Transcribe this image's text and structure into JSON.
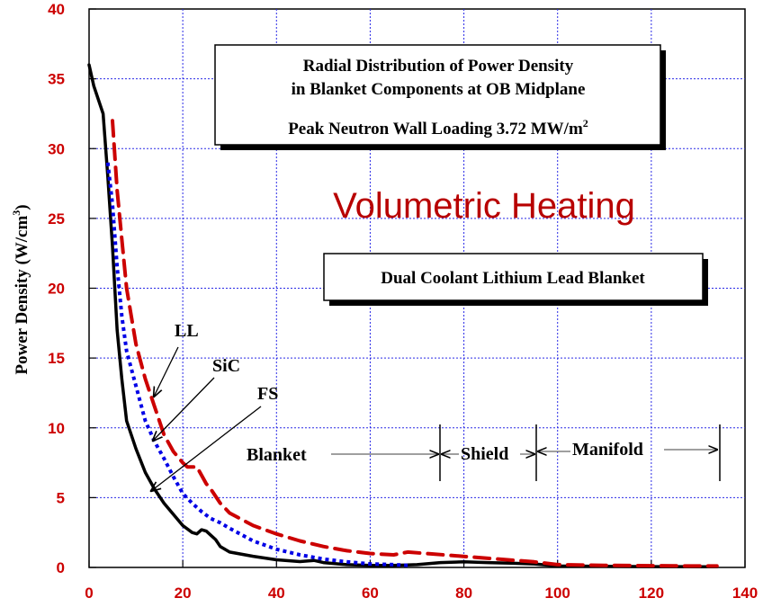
{
  "chart_data": {
    "type": "line",
    "title_line1": "Radial Distribution of Power Density",
    "title_line2": "in Blanket Components at OB Midplane",
    "subtitle_prefix": "Peak Neutron Wall Loading 3.72 MW/m",
    "subtitle_sup": "2",
    "headline": "Volumetric Heating",
    "blanket_label": "Dual Coolant Lithium Lead Blanket",
    "ylabel_prefix": "Power Density (W/cm",
    "ylabel_sup": "3",
    "ylabel_suffix": ")",
    "xlabel": "",
    "xlim": [
      0,
      140
    ],
    "ylim": [
      0,
      40
    ],
    "x_ticks": [
      "0",
      "20",
      "40",
      "60",
      "80",
      "100",
      "120",
      "140"
    ],
    "y_ticks": [
      "0",
      "5",
      "10",
      "15",
      "20",
      "25",
      "30",
      "35",
      "40"
    ],
    "grid": true,
    "series": [
      {
        "name": "FS",
        "color": "#000000",
        "style": "solid",
        "x": [
          0,
          1,
          2,
          3,
          4,
          5,
          6,
          7,
          8,
          10,
          12,
          14,
          16,
          18,
          20,
          22,
          23,
          24,
          25,
          26,
          27,
          28,
          30,
          35,
          40,
          45,
          48,
          50,
          55,
          60,
          65,
          70,
          75,
          80,
          85,
          90,
          95,
          100,
          110,
          120,
          130,
          134
        ],
        "y": [
          36,
          34.5,
          33.5,
          32.5,
          28,
          23,
          17,
          13.5,
          10.5,
          8.5,
          6.8,
          5.6,
          4.6,
          3.8,
          3.0,
          2.5,
          2.4,
          2.7,
          2.6,
          2.3,
          2.0,
          1.5,
          1.1,
          0.8,
          0.55,
          0.42,
          0.5,
          0.35,
          0.2,
          0.15,
          0.15,
          0.2,
          0.35,
          0.4,
          0.35,
          0.3,
          0.25,
          0.1,
          0.08,
          0.06,
          0.05,
          0.05
        ]
      },
      {
        "name": "SiC",
        "color": "#0000e6",
        "style": "dotted",
        "x": [
          4,
          5,
          6,
          7,
          8,
          10,
          12,
          14,
          16,
          18,
          20,
          22,
          24,
          26,
          28,
          30,
          35,
          40,
          45,
          50,
          55,
          60,
          65,
          68
        ],
        "y": [
          29,
          26,
          21.5,
          18,
          15.5,
          13,
          10.5,
          9,
          7.8,
          6.5,
          5.3,
          4.6,
          4.0,
          3.5,
          3.2,
          2.8,
          1.9,
          1.3,
          0.9,
          0.6,
          0.4,
          0.25,
          0.2,
          0.15
        ]
      },
      {
        "name": "LL",
        "color": "#cc0000",
        "style": "dashed",
        "x": [
          5,
          6,
          7,
          8,
          10,
          12,
          14,
          16,
          18,
          20,
          21,
          22,
          23,
          24,
          25,
          26,
          28,
          30,
          35,
          40,
          45,
          50,
          55,
          60,
          65,
          68,
          95,
          100,
          110,
          120,
          130,
          134
        ],
        "y": [
          32,
          27,
          23.5,
          20,
          16,
          13.5,
          11.5,
          9.5,
          8.3,
          7.5,
          7.2,
          7.2,
          7.2,
          6.6,
          6.0,
          5.6,
          4.6,
          3.9,
          3.0,
          2.4,
          1.9,
          1.5,
          1.2,
          1.0,
          0.9,
          1.1,
          0.4,
          0.2,
          0.15,
          0.12,
          0.1,
          0.1
        ]
      }
    ],
    "annotations": {
      "ll": "LL",
      "sic": "SiC",
      "fs": "FS",
      "blanket": "Blanket",
      "shield": "Shield",
      "manifold": "Manifold"
    }
  }
}
